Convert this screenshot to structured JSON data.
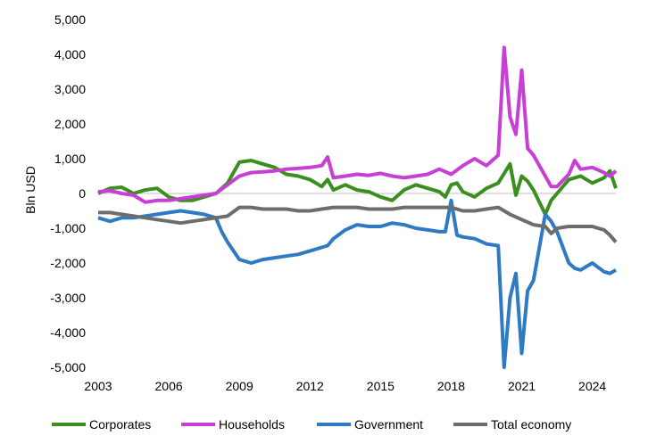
{
  "chart_data": {
    "type": "line",
    "ylabel": "Bln USD",
    "xlabel": "",
    "ylim": [
      -5000,
      5000
    ],
    "yticks": [
      -5000,
      -4000,
      -3000,
      -2000,
      -1000,
      0,
      1000,
      2000,
      3000,
      4000,
      5000
    ],
    "ytick_labels": [
      "-5,000",
      "-4,000",
      "-3,000",
      "-2,000",
      "-1,000",
      "0",
      "1,000",
      "2,000",
      "3,000",
      "4,000",
      "5,000"
    ],
    "xlim": [
      2003,
      2025.0
    ],
    "xticks": [
      2003,
      2006,
      2009,
      2012,
      2015,
      2018,
      2021,
      2024
    ],
    "xtick_labels": [
      "2003",
      "2006",
      "2009",
      "2012",
      "2015",
      "2018",
      "2021",
      "2024"
    ],
    "grid": false,
    "legend_position": "bottom",
    "series": [
      {
        "name": "Corporates",
        "color": "#3a8f1f",
        "x": [
          2003.0,
          2003.5,
          2004.0,
          2004.5,
          2005.0,
          2005.5,
          2006.0,
          2006.5,
          2007.0,
          2007.5,
          2008.0,
          2008.25,
          2008.5,
          2009.0,
          2009.5,
          2010.0,
          2010.5,
          2011.0,
          2011.5,
          2012.0,
          2012.5,
          2012.75,
          2013.0,
          2013.5,
          2014.0,
          2014.5,
          2015.0,
          2015.5,
          2016.0,
          2016.5,
          2017.0,
          2017.5,
          2017.75,
          2018.0,
          2018.25,
          2018.5,
          2019.0,
          2019.5,
          2020.0,
          2020.5,
          2020.75,
          2021.0,
          2021.25,
          2021.5,
          2022.0,
          2022.25,
          2022.5,
          2023.0,
          2023.5,
          2024.0,
          2024.5,
          2024.75,
          2025.0
        ],
        "values": [
          0,
          150,
          180,
          0,
          100,
          150,
          -100,
          -200,
          -200,
          -100,
          0,
          150,
          300,
          900,
          950,
          850,
          750,
          550,
          500,
          400,
          200,
          400,
          100,
          250,
          100,
          50,
          -100,
          -200,
          100,
          250,
          150,
          50,
          -100,
          250,
          300,
          50,
          -100,
          150,
          300,
          850,
          -50,
          500,
          350,
          100,
          -600,
          -200,
          0,
          400,
          500,
          300,
          450,
          650,
          150
        ]
      },
      {
        "name": "Households",
        "color": "#c83fd6",
        "x": [
          2003.0,
          2003.5,
          2004.0,
          2004.5,
          2005.0,
          2005.5,
          2006.0,
          2006.5,
          2007.0,
          2007.5,
          2008.0,
          2008.5,
          2009.0,
          2009.5,
          2010.0,
          2010.5,
          2011.0,
          2011.5,
          2012.0,
          2012.5,
          2012.75,
          2013.0,
          2013.5,
          2014.0,
          2014.5,
          2015.0,
          2015.5,
          2016.0,
          2016.5,
          2017.0,
          2017.5,
          2018.0,
          2018.5,
          2019.0,
          2019.5,
          2020.0,
          2020.25,
          2020.5,
          2020.75,
          2021.0,
          2021.25,
          2021.5,
          2022.0,
          2022.25,
          2022.5,
          2023.0,
          2023.25,
          2023.5,
          2024.0,
          2024.5,
          2024.75,
          2025.0
        ],
        "values": [
          50,
          80,
          0,
          -50,
          -250,
          -200,
          -200,
          -150,
          -100,
          -50,
          0,
          250,
          500,
          600,
          620,
          650,
          700,
          720,
          750,
          800,
          1050,
          450,
          500,
          550,
          520,
          580,
          500,
          450,
          500,
          550,
          700,
          550,
          800,
          1000,
          800,
          1100,
          4200,
          2200,
          1700,
          3550,
          1300,
          1100,
          500,
          200,
          200,
          550,
          950,
          700,
          750,
          600,
          500,
          650
        ]
      },
      {
        "name": "Government",
        "color": "#2e7bc4",
        "x": [
          2003.0,
          2003.5,
          2004.0,
          2004.5,
          2005.0,
          2005.5,
          2006.0,
          2006.5,
          2007.0,
          2007.5,
          2008.0,
          2008.25,
          2008.5,
          2009.0,
          2009.5,
          2010.0,
          2010.5,
          2011.0,
          2011.5,
          2012.0,
          2012.5,
          2012.75,
          2013.0,
          2013.5,
          2014.0,
          2014.5,
          2015.0,
          2015.5,
          2016.0,
          2016.5,
          2017.0,
          2017.5,
          2017.75,
          2018.0,
          2018.25,
          2018.5,
          2019.0,
          2019.5,
          2020.0,
          2020.25,
          2020.5,
          2020.75,
          2021.0,
          2021.25,
          2021.5,
          2022.0,
          2022.25,
          2022.5,
          2023.0,
          2023.25,
          2023.5,
          2024.0,
          2024.5,
          2024.75,
          2025.0
        ],
        "values": [
          -700,
          -800,
          -700,
          -700,
          -650,
          -600,
          -550,
          -500,
          -550,
          -600,
          -700,
          -1100,
          -1400,
          -1900,
          -2000,
          -1900,
          -1850,
          -1800,
          -1750,
          -1650,
          -1550,
          -1500,
          -1300,
          -1050,
          -900,
          -950,
          -950,
          -850,
          -900,
          -1000,
          -1050,
          -1100,
          -1100,
          -200,
          -1200,
          -1250,
          -1300,
          -1450,
          -1500,
          -5000,
          -3000,
          -2300,
          -4600,
          -2800,
          -2500,
          -600,
          -800,
          -1100,
          -2000,
          -2150,
          -2200,
          -2000,
          -2250,
          -2300,
          -2200
        ]
      },
      {
        "name": "Total economy",
        "color": "#6d6d6d",
        "x": [
          2003.0,
          2003.5,
          2004.0,
          2004.5,
          2005.0,
          2005.5,
          2006.0,
          2006.5,
          2007.0,
          2007.5,
          2008.0,
          2008.5,
          2009.0,
          2009.5,
          2010.0,
          2010.5,
          2011.0,
          2011.5,
          2012.0,
          2012.5,
          2013.0,
          2013.5,
          2014.0,
          2014.5,
          2015.0,
          2015.5,
          2016.0,
          2016.5,
          2017.0,
          2017.5,
          2018.0,
          2018.5,
          2019.0,
          2019.5,
          2020.0,
          2020.5,
          2021.0,
          2021.5,
          2022.0,
          2022.25,
          2022.5,
          2023.0,
          2023.5,
          2024.0,
          2024.5,
          2024.75,
          2025.0
        ],
        "values": [
          -550,
          -550,
          -600,
          -650,
          -700,
          -750,
          -800,
          -850,
          -800,
          -750,
          -700,
          -650,
          -400,
          -400,
          -450,
          -450,
          -450,
          -500,
          -500,
          -450,
          -400,
          -400,
          -400,
          -450,
          -450,
          -450,
          -400,
          -400,
          -400,
          -400,
          -400,
          -500,
          -500,
          -450,
          -400,
          -600,
          -750,
          -900,
          -950,
          -1150,
          -1000,
          -950,
          -950,
          -950,
          -1050,
          -1200,
          -1400
        ]
      }
    ]
  }
}
